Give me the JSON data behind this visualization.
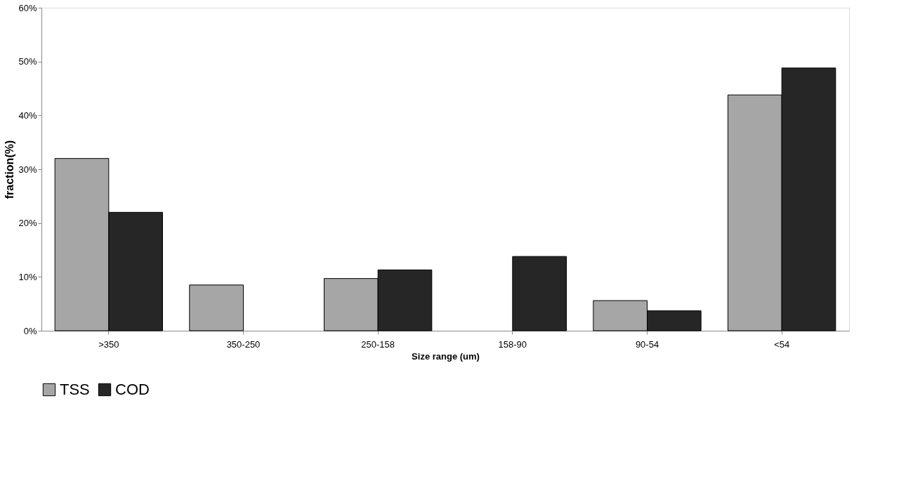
{
  "chart_data": {
    "type": "bar",
    "xlabel": "Size range (um)",
    "ylabel": "fraction(%)",
    "categories": [
      ">350",
      "350-250",
      "250-158",
      "158-90",
      "90-54",
      "<54"
    ],
    "series": [
      {
        "name": "TSS",
        "color": "#a6a6a6",
        "values": [
          32,
          8.5,
          9.7,
          null,
          5.6,
          43.8
        ]
      },
      {
        "name": "COD",
        "color": "#262626",
        "values": [
          22,
          null,
          11.3,
          13.8,
          3.7,
          48.8
        ]
      }
    ],
    "ylim": [
      0,
      60
    ],
    "yticks": [
      {
        "value": 0,
        "label": "0%"
      },
      {
        "value": 10,
        "label": "10%"
      },
      {
        "value": 20,
        "label": "20%"
      },
      {
        "value": 30,
        "label": "30%"
      },
      {
        "value": 40,
        "label": "40%"
      },
      {
        "value": 50,
        "label": "50%"
      },
      {
        "value": 60,
        "label": "60%"
      }
    ],
    "grid": false,
    "legend": "bottom"
  }
}
